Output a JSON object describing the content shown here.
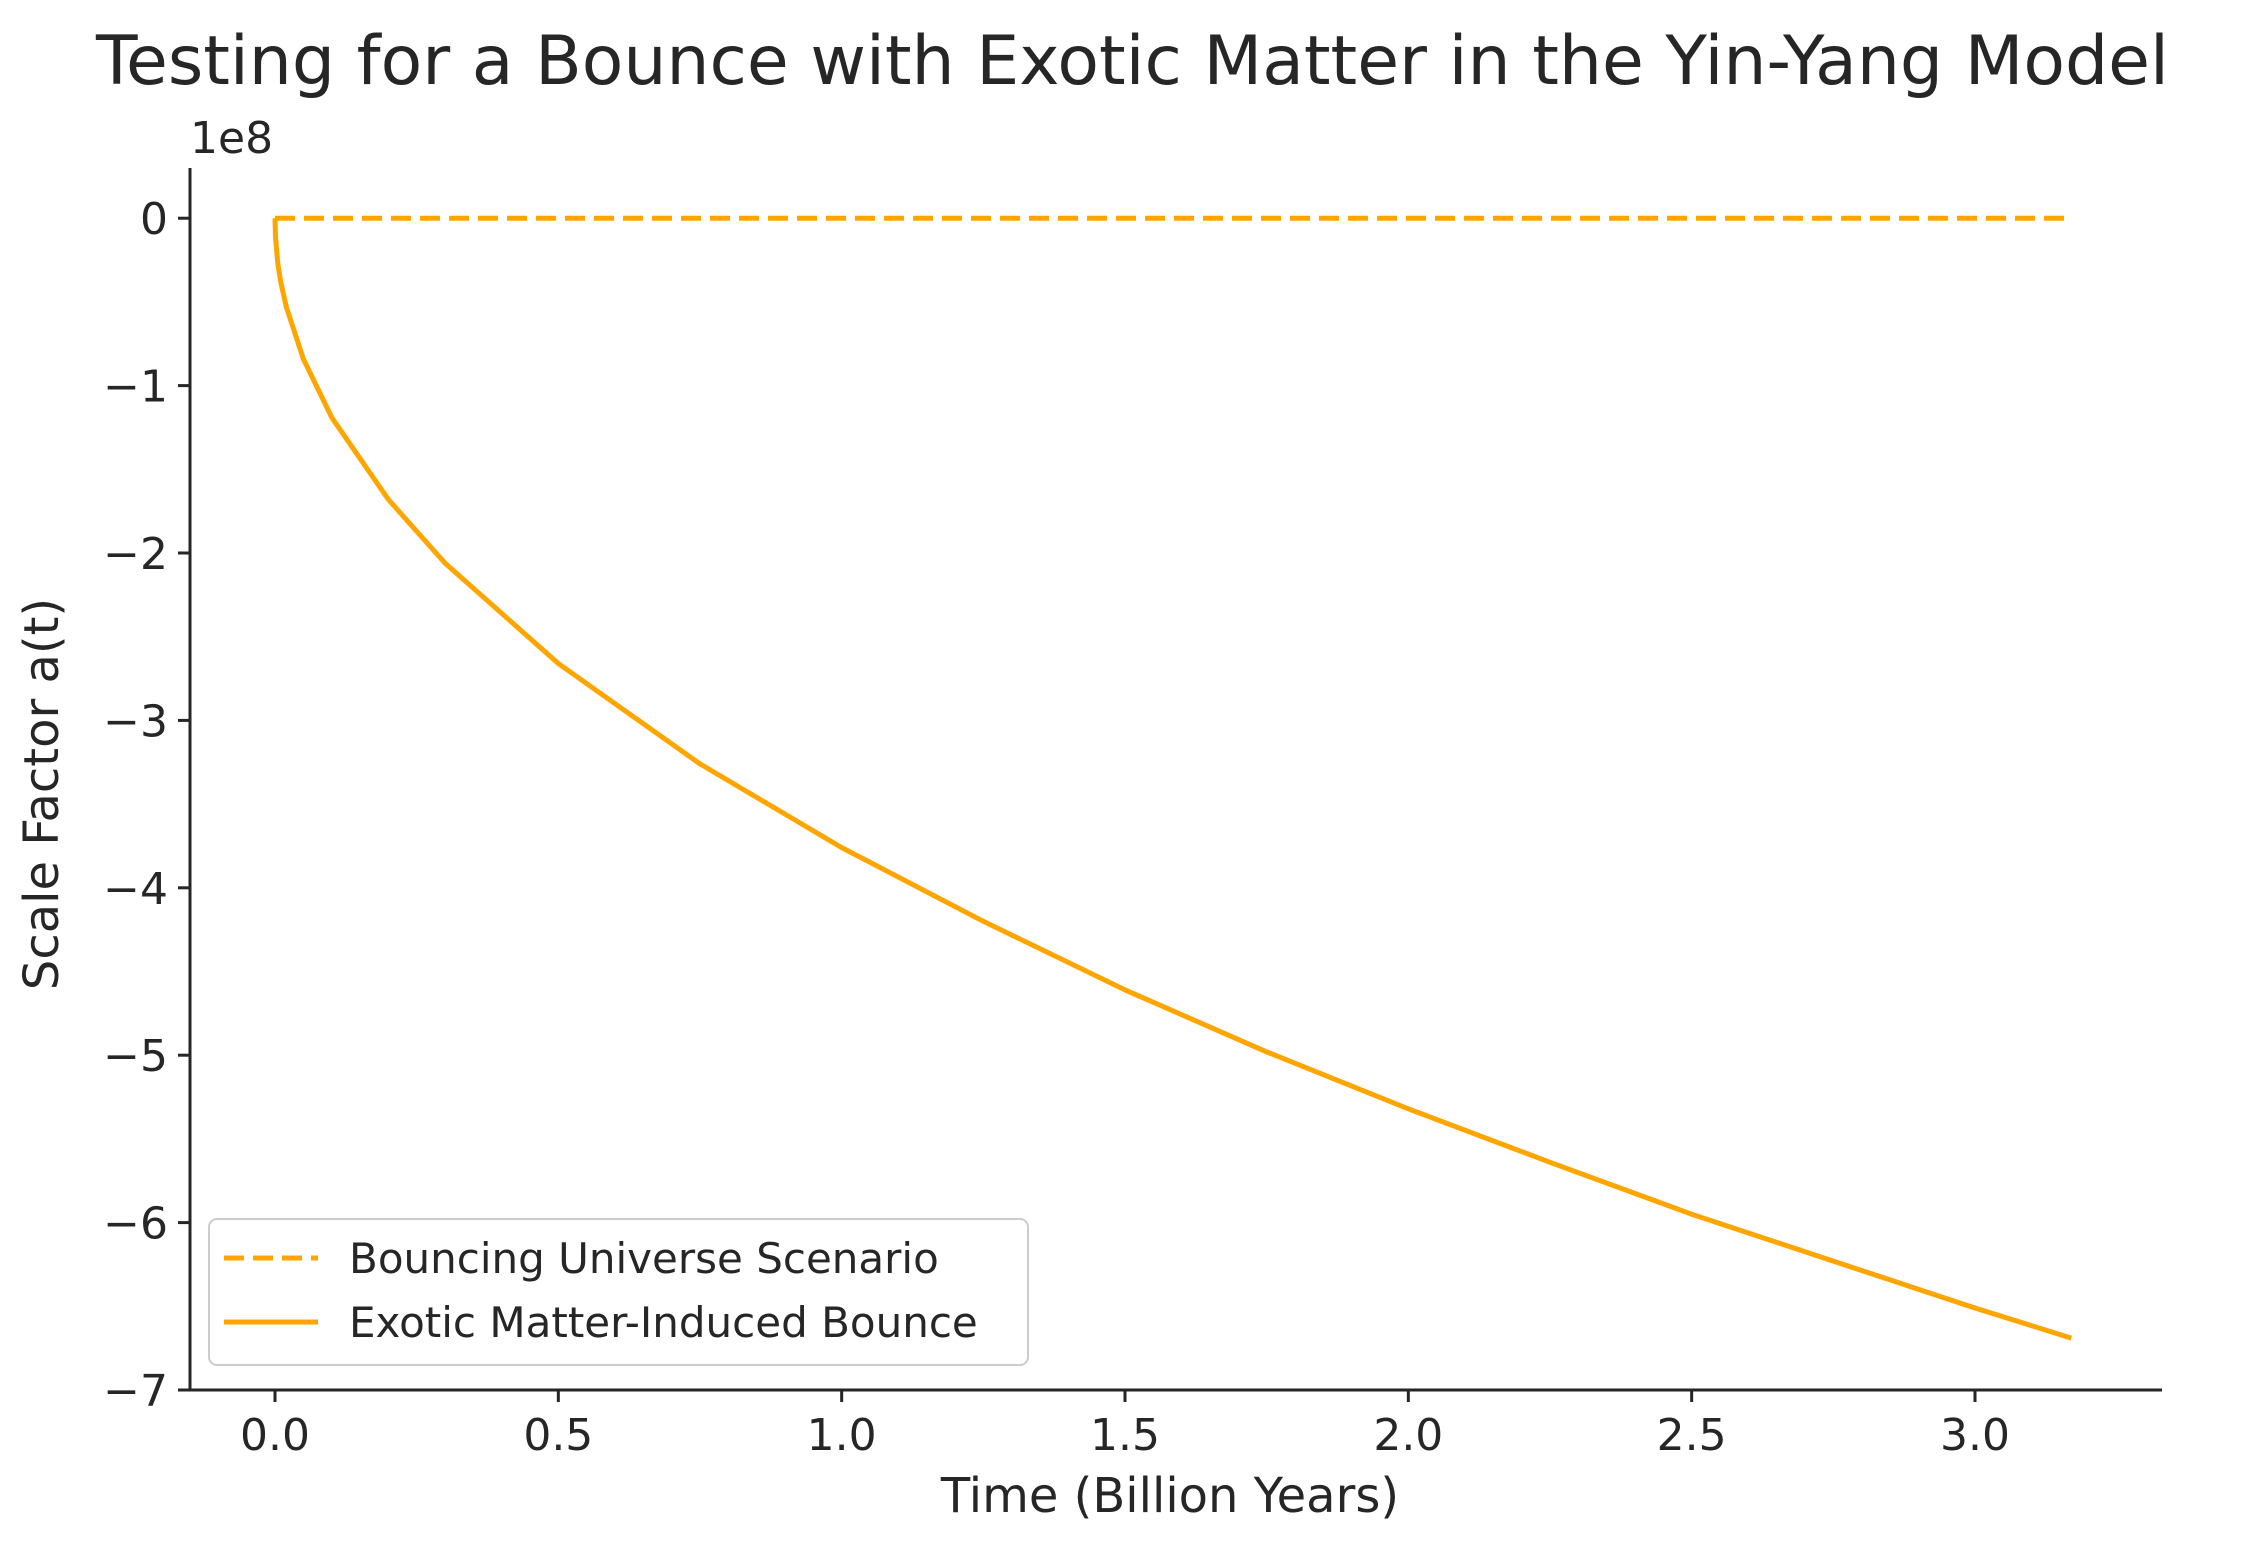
{
  "chart_data": {
    "type": "line",
    "title": "Testing for a Bounce with Exotic Matter in the Yin-Yang Model",
    "xlabel": "Time (Billion Years)",
    "ylabel": "Scale Factor a(t)",
    "y_offset_label": "1e8",
    "xlim": [
      -0.15,
      3.33
    ],
    "ylim": [
      -7.0,
      0.3
    ],
    "y_multiplier": 100000000,
    "x_ticks": [
      0.0,
      0.5,
      1.0,
      1.5,
      2.0,
      2.5,
      3.0
    ],
    "x_tick_labels": [
      "0.0",
      "0.5",
      "1.0",
      "1.5",
      "2.0",
      "2.5",
      "3.0"
    ],
    "y_ticks": [
      0,
      -1,
      -2,
      -3,
      -4,
      -5,
      -6,
      -7
    ],
    "y_tick_labels": [
      "0",
      "−1",
      "−2",
      "−3",
      "−4",
      "−5",
      "−6",
      "−7"
    ],
    "grid": false,
    "legend_position": "lower-left",
    "series": [
      {
        "name": "Bouncing Universe Scenario",
        "style": "dashed",
        "color": "#FFA500",
        "x": [
          0.0,
          0.5,
          1.0,
          1.5,
          2.0,
          2.5,
          3.0,
          3.17
        ],
        "y": [
          0,
          0,
          0,
          0,
          0,
          0,
          0,
          0
        ]
      },
      {
        "name": "Exotic Matter-Induced Bounce",
        "style": "solid",
        "color": "#FFA500",
        "x": [
          0.0,
          0.001,
          0.005,
          0.01,
          0.02,
          0.05,
          0.1,
          0.2,
          0.3,
          0.5,
          0.75,
          1.0,
          1.25,
          1.5,
          1.75,
          2.0,
          2.25,
          2.5,
          2.75,
          3.0,
          3.17
        ],
        "y": [
          0,
          -0.12,
          -0.27,
          -0.38,
          -0.53,
          -0.84,
          -1.19,
          -1.68,
          -2.06,
          -2.66,
          -3.26,
          -3.76,
          -4.2,
          -4.61,
          -4.98,
          -5.32,
          -5.64,
          -5.95,
          -6.23,
          -6.51,
          -6.69
        ]
      }
    ]
  }
}
